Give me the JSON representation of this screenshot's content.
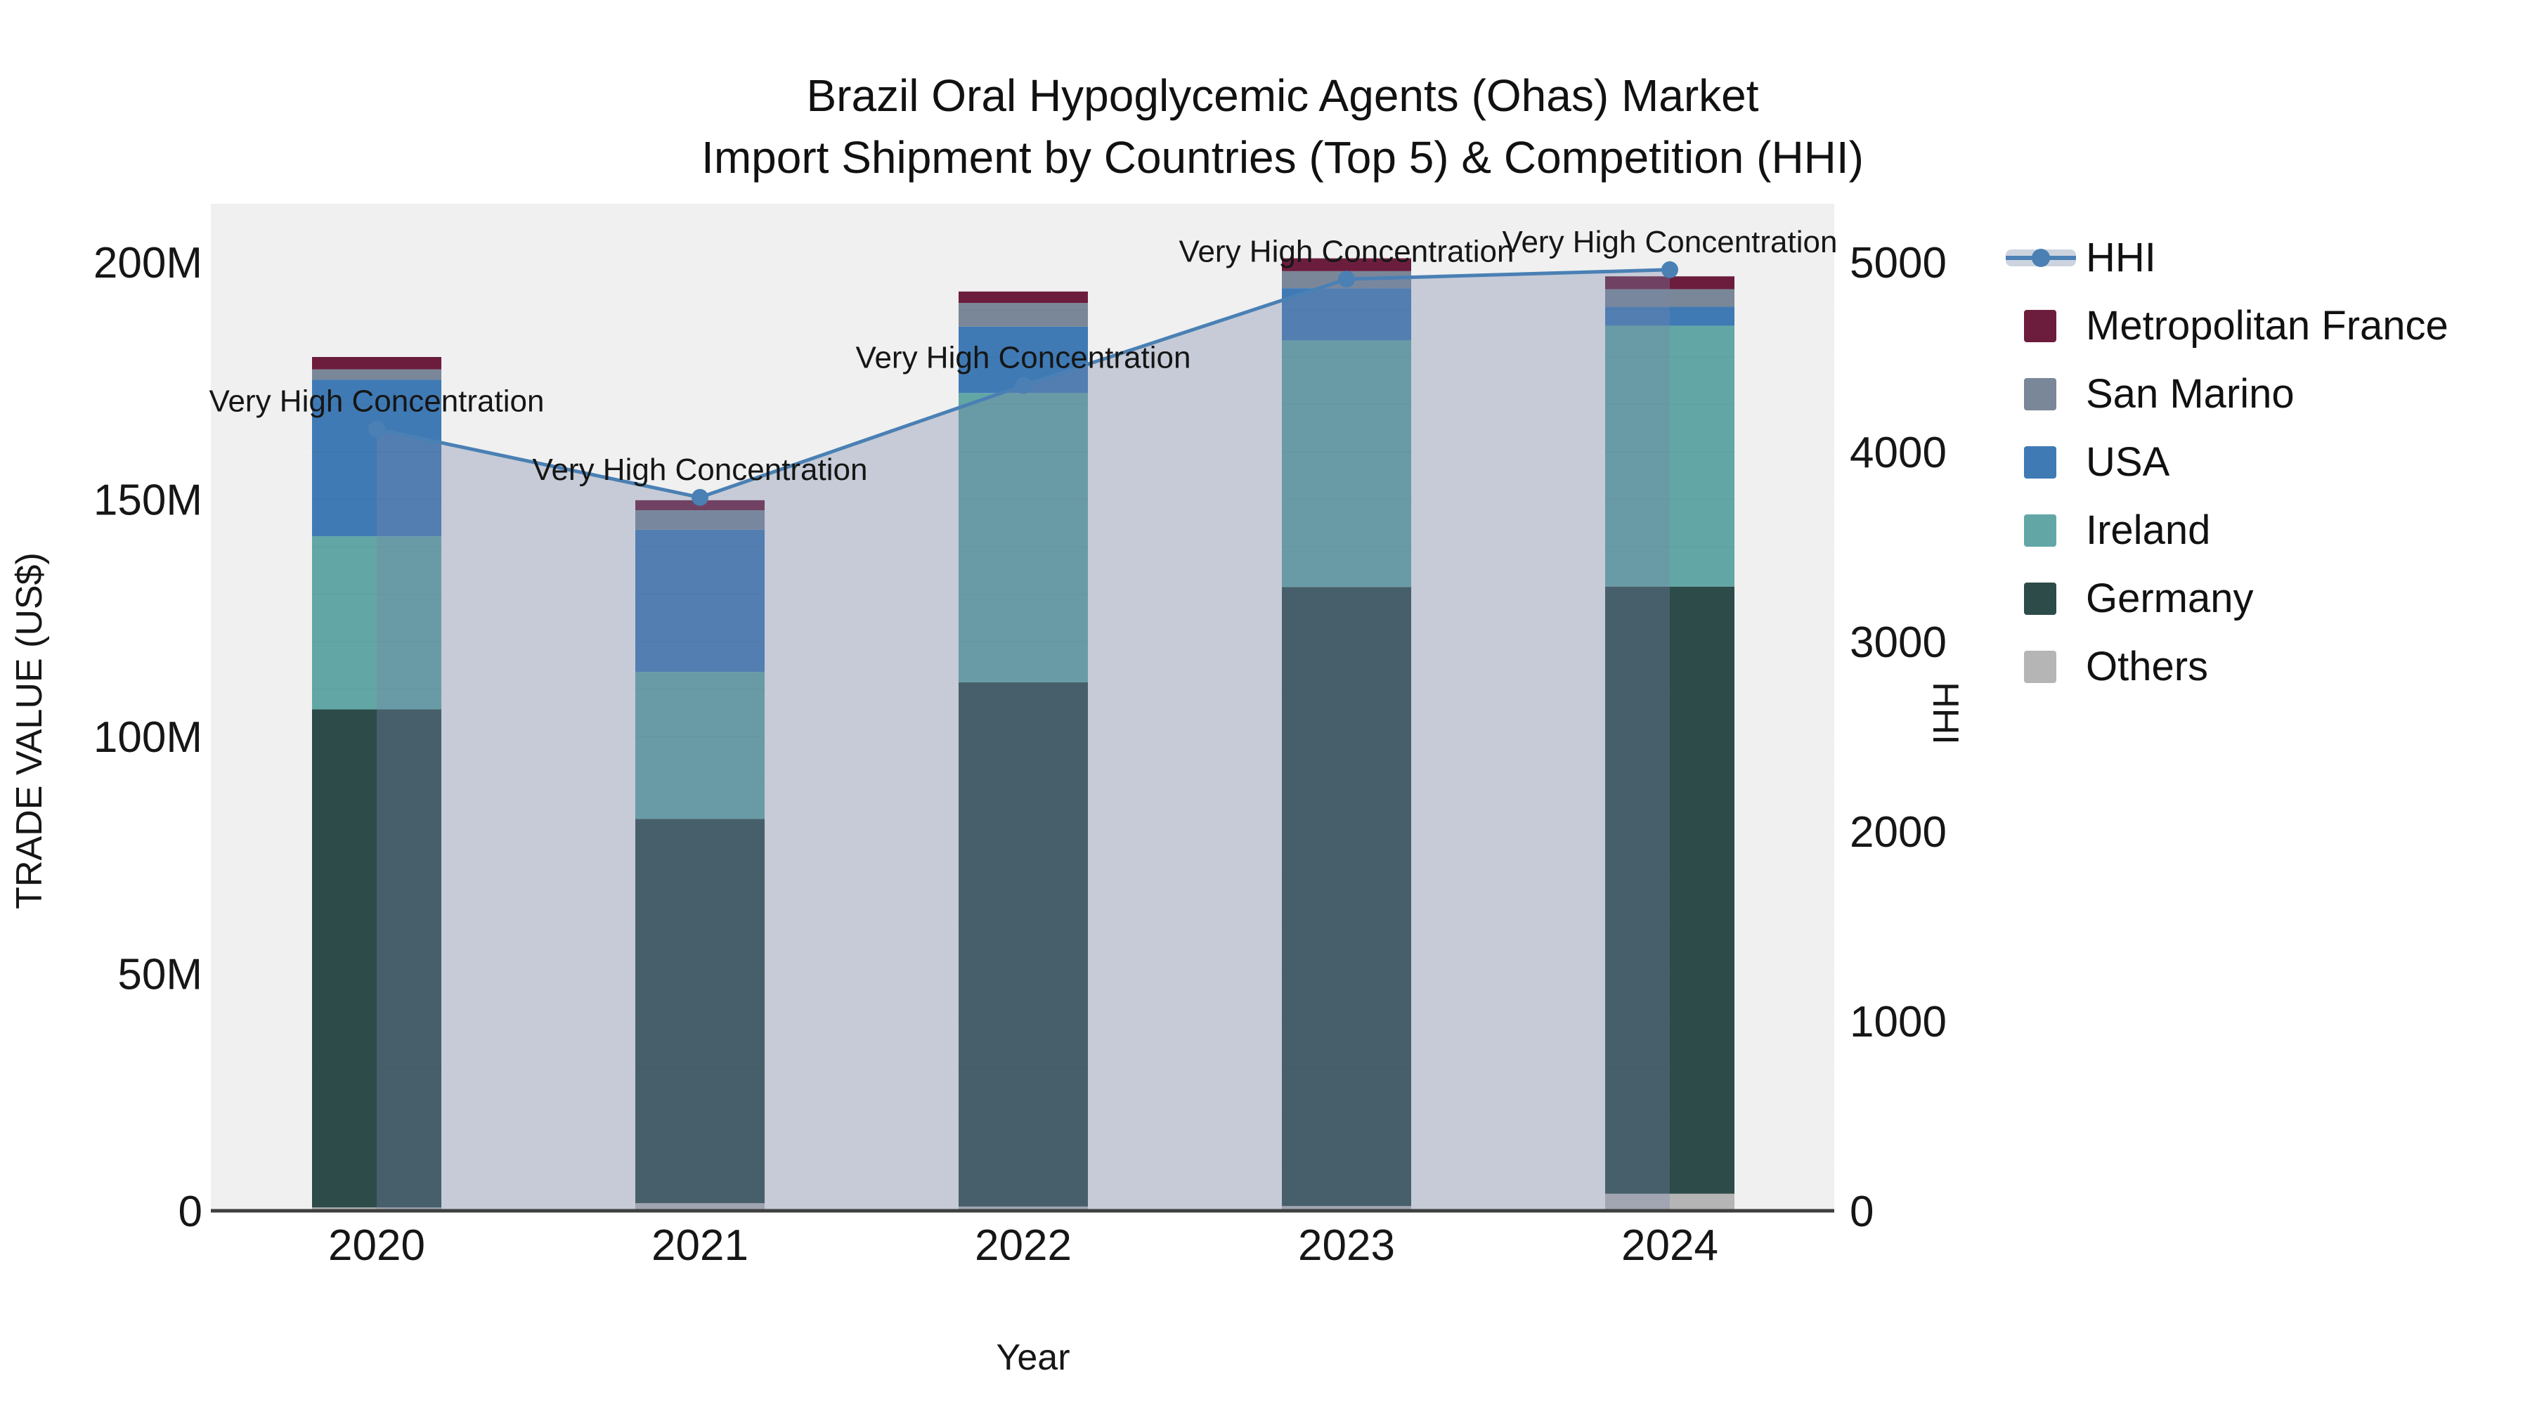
{
  "title": {
    "line1": "Brazil Oral Hypoglycemic Agents (Ohas) Market",
    "line2": "Import Shipment by Countries (Top 5) & Competition (HHI)"
  },
  "axes": {
    "left_label": "TRADE VALUE (US$)",
    "right_label": "HHI",
    "x_label": "Year",
    "left_ticks": [
      {
        "label": "0",
        "value": 0
      },
      {
        "label": "50M",
        "value": 50
      },
      {
        "label": "100M",
        "value": 100
      },
      {
        "label": "150M",
        "value": 150
      },
      {
        "label": "200M",
        "value": 200
      }
    ],
    "right_ticks": [
      {
        "label": "0",
        "value": 0
      },
      {
        "label": "1000",
        "value": 1000
      },
      {
        "label": "2000",
        "value": 2000
      },
      {
        "label": "3000",
        "value": 3000
      },
      {
        "label": "4000",
        "value": 4000
      },
      {
        "label": "5000",
        "value": 5000
      }
    ]
  },
  "legend": {
    "items": [
      {
        "label": "HHI",
        "type": "line",
        "color": "#4a80b4"
      },
      {
        "label": "Metropolitan France",
        "type": "swatch",
        "color": "#6c1d3d"
      },
      {
        "label": "San Marino",
        "type": "swatch",
        "color": "#7a8798"
      },
      {
        "label": "USA",
        "type": "swatch",
        "color": "#3f7ab5"
      },
      {
        "label": "Ireland",
        "type": "swatch",
        "color": "#62a7a5"
      },
      {
        "label": "Germany",
        "type": "swatch",
        "color": "#2d4b49"
      },
      {
        "label": "Others",
        "type": "swatch",
        "color": "#b5b5b5"
      }
    ]
  },
  "chart_data": {
    "type": "bar",
    "subtype": "stacked bars (left axis, USD millions) + HHI line with shaded area (right axis)",
    "categories": [
      "2020",
      "2021",
      "2022",
      "2023",
      "2024"
    ],
    "bar_unit": "USD millions",
    "series": [
      {
        "name": "Others",
        "color": "#b5b5b5",
        "values": [
          0.7,
          1.6,
          0.9,
          1.0,
          3.6
        ]
      },
      {
        "name": "Germany",
        "color": "#2d4b49",
        "values": [
          105,
          81,
          110.5,
          130.5,
          128
        ]
      },
      {
        "name": "Ireland",
        "color": "#62a7a5",
        "values": [
          36.5,
          31,
          61,
          52,
          55
        ]
      },
      {
        "name": "USA",
        "color": "#3f7ab5",
        "values": [
          33,
          30,
          14,
          11,
          4
        ]
      },
      {
        "name": "San Marino",
        "color": "#7a8798",
        "values": [
          2.2,
          4.1,
          5.0,
          3.6,
          3.7
        ]
      },
      {
        "name": "Metropolitan France",
        "color": "#6c1d3d",
        "values": [
          2.6,
          2.1,
          2.4,
          2.7,
          2.7
        ]
      }
    ],
    "bar_totals": [
      180.0,
      149.8,
      193.8,
      200.8,
      197.0
    ],
    "line_series": {
      "name": "HHI",
      "axis": "right",
      "color": "#4a80b4",
      "area_fill": "rgba(119,136,170,0.35)",
      "values": [
        4120,
        3760,
        4350,
        4910,
        4960
      ]
    },
    "annotations": [
      {
        "text": "Very High Concentration",
        "category": "2020"
      },
      {
        "text": "Very High Concentration",
        "category": "2021"
      },
      {
        "text": "Very High Concentration",
        "category": "2022"
      },
      {
        "text": "Very High Concentration",
        "category": "2023"
      },
      {
        "text": "Very High Concentration",
        "category": "2024"
      }
    ],
    "title": "Brazil Oral Hypoglycemic Agents (Ohas) Market Import Shipment by Countries (Top 5) & Competition (HHI)",
    "xlabel": "Year",
    "ylabel_left": "TRADE VALUE (US$)",
    "ylabel_right": "HHI",
    "ylim_left": [
      0,
      212
    ],
    "ylim_right": [
      0,
      5300
    ],
    "grid": "horizontal, every 10M",
    "legend_position": "right",
    "plot_background": "#f0f0f0"
  }
}
